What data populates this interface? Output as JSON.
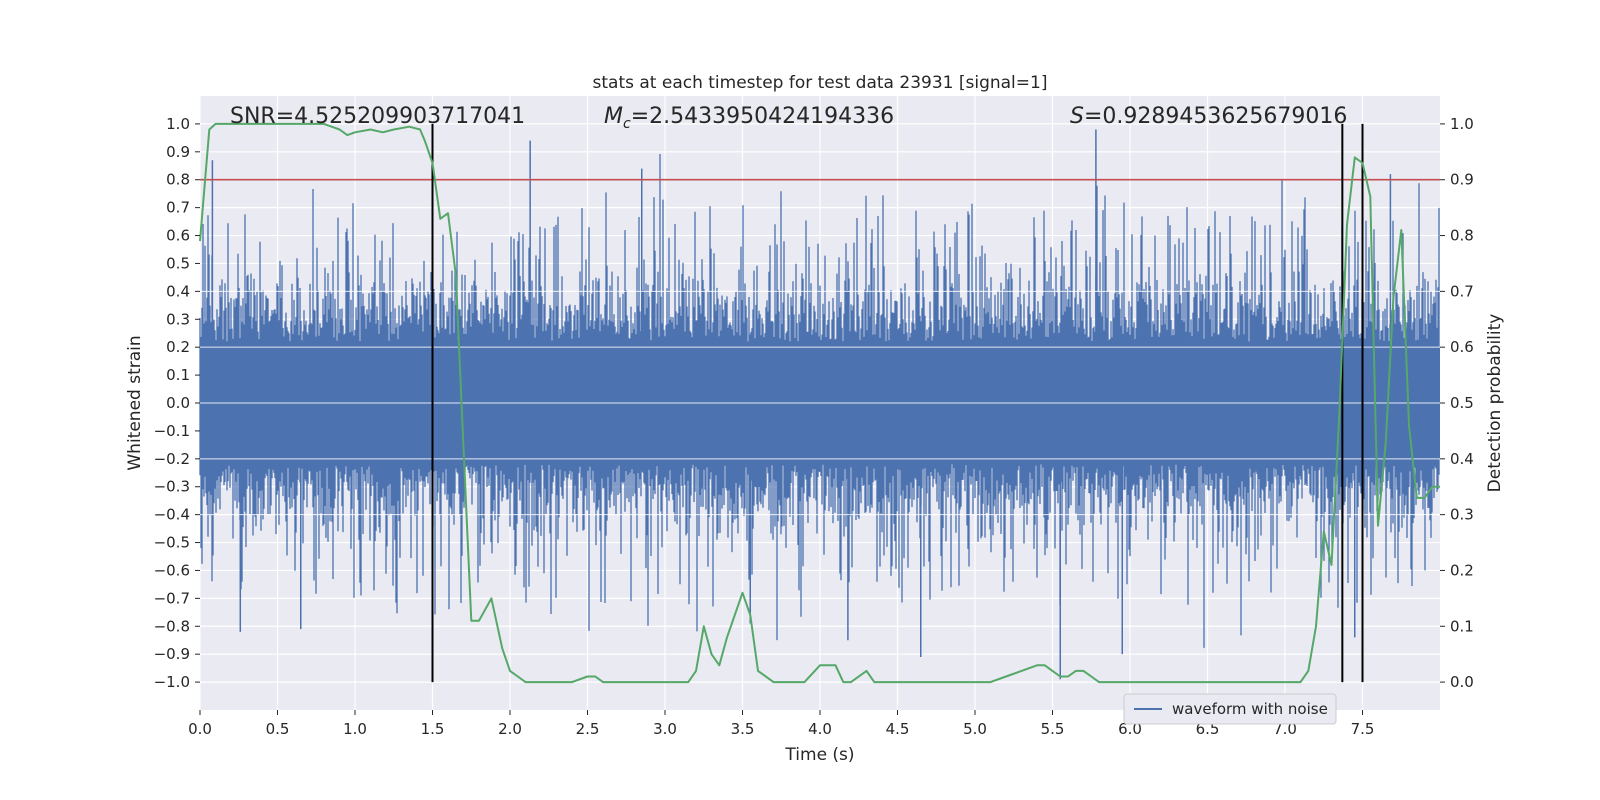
{
  "chart_data": {
    "type": "line",
    "title": "stats at each timestep for test data 23931 [signal=1]",
    "xlabel": "Time (s)",
    "ylabel_left": "Whitened strain",
    "ylabel_right": "Detection probability",
    "xlim": [
      0.0,
      8.0
    ],
    "ylim_left": [
      -1.1,
      1.1
    ],
    "ylim_right": [
      -0.05,
      1.05
    ],
    "x_ticks": [
      "0.0",
      "0.5",
      "1.0",
      "1.5",
      "2.0",
      "2.5",
      "3.0",
      "3.5",
      "4.0",
      "4.5",
      "5.0",
      "5.5",
      "6.0",
      "6.5",
      "7.0",
      "7.5"
    ],
    "y_left_ticks": [
      "1.0",
      "0.9",
      "0.8",
      "0.7",
      "0.6",
      "0.5",
      "0.4",
      "0.3",
      "0.2",
      "0.1",
      "0.0",
      "−0.1",
      "−0.2",
      "−0.3",
      "−0.4",
      "−0.5",
      "−0.6",
      "−0.7",
      "−0.8",
      "−0.9",
      "−1.0"
    ],
    "y_right_ticks": [
      "1.0",
      "0.9",
      "0.8",
      "0.7",
      "0.6",
      "0.5",
      "0.4",
      "0.3",
      "0.2",
      "0.1",
      "0.0"
    ],
    "grid": true,
    "background": "#eaeaf2",
    "annotations": {
      "snr": "SNR=4.525209903717041",
      "mc_symbol": "M",
      "mc_sub": "c",
      "mc_value": "=2.5433950424194336",
      "s_symbol": "S",
      "s_value": "=0.9289453625679016"
    },
    "threshold": {
      "y": 0.9,
      "axis": "right",
      "color": "#c44e52"
    },
    "vertical_lines": [
      {
        "x": 1.5,
        "ymin": -1.0,
        "ymax": 1.0,
        "color": "#000000"
      },
      {
        "x": 7.37,
        "ymin": -1.0,
        "ymax": 1.0,
        "color": "#000000"
      },
      {
        "x": 7.5,
        "ymin": -1.0,
        "ymax": 1.0,
        "color": "#000000"
      }
    ],
    "series": [
      {
        "name": "waveform with noise",
        "axis": "left",
        "color": "#4c72b0",
        "kind": "dense noise waveform (envelope approx. ±0.4, spikes up to ±1.0)",
        "notable_spikes": [
          {
            "x": 0.08,
            "y": 0.87
          },
          {
            "x": 0.26,
            "y": -0.82
          },
          {
            "x": 0.65,
            "y": -0.81
          },
          {
            "x": 2.13,
            "y": 0.94
          },
          {
            "x": 2.85,
            "y": 0.84
          },
          {
            "x": 3.55,
            "y": -0.79
          },
          {
            "x": 4.18,
            "y": -0.85
          },
          {
            "x": 4.65,
            "y": -0.91
          },
          {
            "x": 5.55,
            "y": -0.99
          },
          {
            "x": 5.78,
            "y": 0.98
          },
          {
            "x": 5.95,
            "y": -0.9
          },
          {
            "x": 7.45,
            "y": -0.84
          },
          {
            "x": 7.68,
            "y": 0.82
          }
        ]
      },
      {
        "name": "",
        "axis": "right",
        "color": "#55a868",
        "x": [
          0.0,
          0.06,
          0.1,
          0.15,
          0.2,
          0.3,
          0.4,
          0.5,
          0.6,
          0.7,
          0.8,
          0.9,
          0.95,
          1.0,
          1.1,
          1.18,
          1.25,
          1.35,
          1.42,
          1.45,
          1.5,
          1.55,
          1.6,
          1.65,
          1.7,
          1.75,
          1.8,
          1.88,
          1.95,
          2.0,
          2.05,
          2.1,
          2.2,
          2.3,
          2.4,
          2.5,
          2.55,
          2.6,
          2.7,
          2.8,
          2.9,
          3.0,
          3.05,
          3.1,
          3.15,
          3.2,
          3.25,
          3.3,
          3.35,
          3.4,
          3.5,
          3.55,
          3.6,
          3.7,
          3.75,
          3.8,
          3.85,
          3.9,
          4.0,
          4.05,
          4.1,
          4.15,
          4.2,
          4.3,
          4.35,
          4.4,
          4.5,
          4.6,
          4.8,
          5.0,
          5.1,
          5.2,
          5.3,
          5.4,
          5.45,
          5.5,
          5.55,
          5.6,
          5.65,
          5.7,
          5.75,
          5.8,
          5.85,
          5.9,
          6.0,
          6.2,
          6.5,
          6.8,
          6.9,
          7.0,
          7.05,
          7.1,
          7.15,
          7.2,
          7.25,
          7.3,
          7.35,
          7.4,
          7.45,
          7.5,
          7.55,
          7.6,
          7.65,
          7.7,
          7.75,
          7.8,
          7.85,
          7.9,
          7.95,
          8.0
        ],
        "y": [
          0.79,
          0.99,
          1.0,
          1.0,
          1.0,
          1.0,
          1.0,
          1.0,
          1.0,
          1.0,
          1.0,
          0.99,
          0.98,
          0.985,
          0.99,
          0.985,
          0.99,
          0.995,
          0.99,
          0.97,
          0.93,
          0.83,
          0.84,
          0.73,
          0.42,
          0.11,
          0.11,
          0.15,
          0.06,
          0.02,
          0.01,
          0.0,
          0.0,
          0.0,
          0.0,
          0.01,
          0.01,
          0.0,
          0.0,
          0.0,
          0.0,
          0.0,
          0.0,
          0.0,
          0.0,
          0.02,
          0.1,
          0.05,
          0.03,
          0.08,
          0.16,
          0.12,
          0.02,
          0.0,
          0.0,
          0.0,
          0.0,
          0.0,
          0.03,
          0.03,
          0.03,
          0.0,
          0.0,
          0.02,
          0.0,
          0.0,
          0.0,
          0.0,
          0.0,
          0.0,
          0.0,
          0.01,
          0.02,
          0.03,
          0.03,
          0.02,
          0.01,
          0.01,
          0.02,
          0.02,
          0.01,
          0.0,
          0.0,
          0.0,
          0.0,
          0.0,
          0.0,
          0.0,
          0.0,
          0.0,
          0.0,
          0.0,
          0.02,
          0.1,
          0.27,
          0.21,
          0.48,
          0.82,
          0.94,
          0.93,
          0.87,
          0.28,
          0.43,
          0.69,
          0.81,
          0.46,
          0.33,
          0.33,
          0.35,
          0.35
        ]
      }
    ],
    "legend": {
      "location": "lower-right",
      "entries": [
        "waveform with noise"
      ]
    }
  }
}
